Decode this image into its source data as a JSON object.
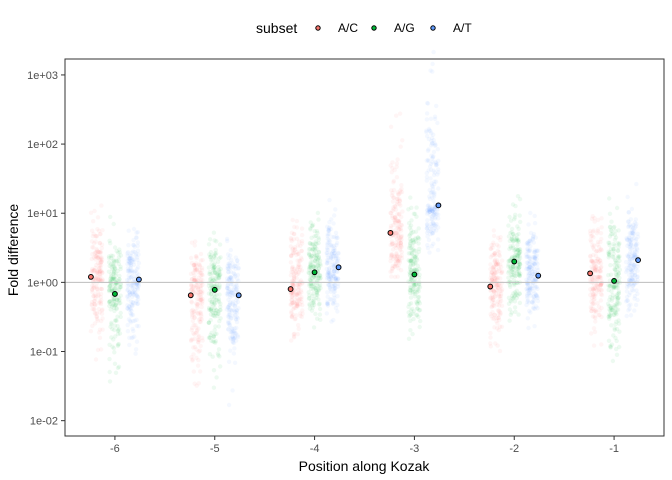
{
  "chart_data": {
    "type": "scatter",
    "xlabel": "Position along Kozak",
    "ylabel": "Fold difference",
    "y_scale": "log10",
    "ylim": [
      0.006,
      1700
    ],
    "y_ticks": [
      {
        "value": 0.01,
        "label": "1e-02"
      },
      {
        "value": 0.1,
        "label": "1e-01"
      },
      {
        "value": 1,
        "label": "1e+00"
      },
      {
        "value": 10,
        "label": "1e+01"
      },
      {
        "value": 100,
        "label": "1e+02"
      },
      {
        "value": 1000,
        "label": "1e+03"
      }
    ],
    "categories": [
      "-6",
      "-5",
      "-4",
      "-3",
      "-2",
      "-1"
    ],
    "reference_line": 1,
    "grid": false,
    "legend": {
      "title": "subset",
      "position": "top",
      "entries": [
        "A/C",
        "A/G",
        "A/T"
      ]
    },
    "series": [
      {
        "name": "A/C",
        "color": "#F8766D",
        "values": [
          1.2,
          0.65,
          0.8,
          5.2,
          0.87,
          1.35
        ],
        "spread_log10": [
          [
            -1.4,
            1.5
          ],
          [
            -2.0,
            1.2
          ],
          [
            -1.2,
            1.4
          ],
          [
            -1.0,
            2.1
          ],
          [
            -1.3,
            1.3
          ],
          [
            -1.2,
            1.4
          ]
        ]
      },
      {
        "name": "A/G",
        "color": "#00BA38",
        "values": [
          0.68,
          0.78,
          1.4,
          1.3,
          2.0,
          1.05
        ],
        "spread_log10": [
          [
            -1.6,
            1.2
          ],
          [
            -1.8,
            1.2
          ],
          [
            -1.0,
            1.4
          ],
          [
            -1.2,
            1.5
          ],
          [
            -1.3,
            1.2
          ],
          [
            -1.5,
            1.4
          ]
        ]
      },
      {
        "name": "A/T",
        "color": "#619CFF",
        "values": [
          1.1,
          0.65,
          1.65,
          13,
          1.25,
          2.1
        ],
        "spread_log10": [
          [
            -1.5,
            1.2
          ],
          [
            -1.7,
            1.2
          ],
          [
            -1.0,
            1.3
          ],
          [
            -0.9,
            2.5
          ],
          [
            -1.1,
            1.3
          ],
          [
            -1.2,
            1.4
          ]
        ]
      }
    ]
  }
}
